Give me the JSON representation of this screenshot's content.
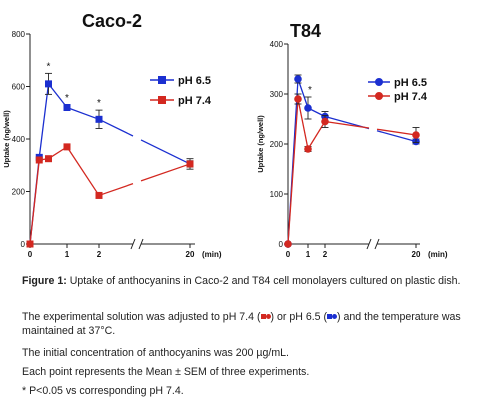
{
  "chart_data": [
    {
      "type": "line",
      "title": "Caco-2",
      "xlabel": "(min)",
      "ylabel": "Uptake (ng/well)",
      "x_tick_labels": [
        "0",
        "1",
        "2",
        "20"
      ],
      "y_tick_labels": [
        "0",
        "200",
        "400",
        "600",
        "800"
      ],
      "ylim": [
        0,
        800
      ],
      "axis_break": "between 2 and 20 min",
      "legend_position": "right",
      "marker": "square",
      "significance_marks": [
        "*",
        "*",
        "*"
      ],
      "series": [
        {
          "name": "pH 6.5",
          "color": "#1b2fd0",
          "x": [
            0,
            0.25,
            0.5,
            1,
            2,
            20
          ],
          "y": [
            0,
            330,
            610,
            520,
            475,
            305
          ],
          "err": [
            0,
            0,
            40,
            10,
            35,
            20
          ]
        },
        {
          "name": "pH 7.4",
          "color": "#d32820",
          "x": [
            0,
            0.25,
            0.5,
            1,
            2,
            20
          ],
          "y": [
            0,
            320,
            325,
            370,
            185,
            305
          ],
          "err": [
            0,
            0,
            10,
            10,
            8,
            12
          ]
        }
      ]
    },
    {
      "type": "line",
      "title": "T84",
      "xlabel": "(min)",
      "ylabel": "Uptake (ng/well)",
      "x_tick_labels": [
        "0",
        "1",
        "2",
        "20"
      ],
      "y_tick_labels": [
        "0",
        "100",
        "200",
        "300",
        "400"
      ],
      "ylim": [
        0,
        400
      ],
      "axis_break": "between 2 and 20 min",
      "legend_position": "right",
      "marker": "circle",
      "significance_marks": [
        "*"
      ],
      "series": [
        {
          "name": "pH 6.5",
          "color": "#1b2fd0",
          "x": [
            0,
            0.5,
            1,
            2,
            20
          ],
          "y": [
            0,
            330,
            272,
            255,
            205
          ],
          "err": [
            0,
            8,
            22,
            10,
            5
          ]
        },
        {
          "name": "pH 7.4",
          "color": "#d32820",
          "x": [
            0,
            0.5,
            1,
            2,
            20
          ],
          "y": [
            0,
            290,
            190,
            245,
            218
          ],
          "err": [
            0,
            10,
            5,
            12,
            15
          ]
        }
      ]
    }
  ],
  "caption": {
    "figure_label": "Figure 1:",
    "title_text": "Uptake of anthocyanins in Caco-2 and T84 cell monolayers cultured on plastic dish.",
    "line2_a": "The experimental solution was adjusted to pH 7.4 (",
    "line2_b": ") or pH 6.5 (",
    "line2_c": ") and the temperature was maintained at 37°C.",
    "line3": "The initial concentration of anthocyanins was 200 µg/mL.",
    "line4": "Each point represents the Mean ± SEM of three experiments.",
    "line5": "* P<0.05 vs corresponding pH 7.4.",
    "colors": {
      "red": "#d32820",
      "blue": "#1b2fd0"
    }
  }
}
